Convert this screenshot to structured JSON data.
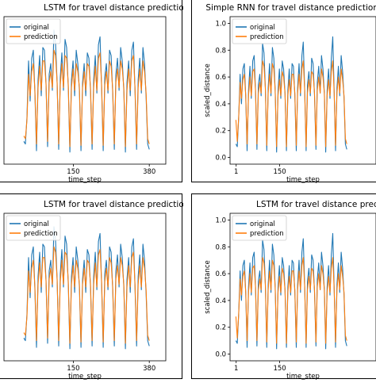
{
  "colors": {
    "original": "#1f77b4",
    "prediction": "#ff7f0e",
    "axis": "#000000",
    "background": "#ffffff"
  },
  "chart_data": [
    {
      "type": "line",
      "title": "LSTM for travel distance prediction",
      "xlabel": "time_step",
      "ylabel": "",
      "xticks": [
        "150",
        "380"
      ],
      "yticks": [],
      "legend": [
        "original",
        "prediction"
      ],
      "legend_position": "upper-left",
      "xlim": [
        -60,
        430
      ],
      "ylim": [
        -0.05,
        1.05
      ],
      "series": [
        {
          "name": "original",
          "values": [
            0.12,
            0.1,
            0.3,
            0.72,
            0.42,
            0.74,
            0.8,
            0.48,
            0.05,
            0.58,
            0.76,
            0.46,
            0.82,
            0.8,
            0.55,
            0.08,
            0.62,
            0.7,
            0.5,
            0.95,
            0.85,
            0.56,
            0.06,
            0.6,
            0.78,
            0.5,
            0.88,
            0.82,
            0.52,
            0.04,
            0.58,
            0.72,
            0.46,
            0.8,
            0.7,
            0.5,
            0.05,
            0.56,
            0.7,
            0.46,
            0.78,
            0.74,
            0.5,
            0.06,
            0.58,
            0.76,
            0.48,
            0.84,
            0.9,
            0.52,
            0.05,
            0.6,
            0.7,
            0.48,
            0.8,
            0.76,
            0.48,
            0.06,
            0.62,
            0.74,
            0.5,
            0.82,
            0.72,
            0.5,
            0.04,
            0.56,
            0.72,
            0.46,
            0.8,
            0.86,
            0.5,
            0.06,
            0.58,
            0.74,
            0.48,
            0.82,
            0.7,
            0.45,
            0.1,
            0.06
          ]
        },
        {
          "name": "prediction",
          "values": [
            0.16,
            0.14,
            0.28,
            0.62,
            0.46,
            0.64,
            0.7,
            0.5,
            0.1,
            0.52,
            0.68,
            0.5,
            0.72,
            0.72,
            0.55,
            0.12,
            0.56,
            0.64,
            0.52,
            0.8,
            0.76,
            0.56,
            0.1,
            0.54,
            0.7,
            0.52,
            0.76,
            0.74,
            0.54,
            0.08,
            0.52,
            0.66,
            0.5,
            0.7,
            0.64,
            0.52,
            0.09,
            0.52,
            0.64,
            0.5,
            0.7,
            0.68,
            0.52,
            0.1,
            0.52,
            0.68,
            0.5,
            0.74,
            0.78,
            0.54,
            0.09,
            0.54,
            0.64,
            0.5,
            0.72,
            0.68,
            0.5,
            0.1,
            0.56,
            0.66,
            0.52,
            0.72,
            0.66,
            0.52,
            0.08,
            0.5,
            0.66,
            0.5,
            0.72,
            0.76,
            0.52,
            0.1,
            0.52,
            0.66,
            0.5,
            0.72,
            0.64,
            0.48,
            0.14,
            0.1
          ]
        }
      ]
    },
    {
      "type": "line",
      "title": "Simple RNN for travel distance prediction",
      "xlabel": "time_step",
      "ylabel": "scaled_distance",
      "xticks": [
        "1",
        "150"
      ],
      "yticks": [
        "0.0",
        "0.2",
        "0.4",
        "0.6",
        "0.8",
        "1.0"
      ],
      "legend": [
        "original",
        "prediction"
      ],
      "legend_position": "upper-left",
      "xlim": [
        -20,
        480
      ],
      "ylim": [
        -0.05,
        1.05
      ],
      "series": [
        {
          "name": "original",
          "values": [
            0.1,
            0.08,
            0.3,
            0.62,
            0.4,
            0.66,
            0.7,
            0.45,
            0.05,
            0.5,
            0.68,
            0.44,
            0.72,
            0.76,
            0.5,
            0.06,
            0.54,
            0.62,
            0.46,
            0.85,
            0.78,
            0.52,
            0.05,
            0.52,
            0.7,
            0.46,
            0.82,
            0.74,
            0.5,
            0.04,
            0.5,
            0.66,
            0.44,
            0.72,
            0.66,
            0.48,
            0.05,
            0.5,
            0.66,
            0.44,
            0.7,
            0.68,
            0.46,
            0.05,
            0.52,
            0.7,
            0.46,
            0.76,
            0.86,
            0.5,
            0.05,
            0.54,
            0.64,
            0.46,
            0.74,
            0.7,
            0.46,
            0.06,
            0.56,
            0.68,
            0.48,
            0.76,
            0.66,
            0.48,
            0.04,
            0.5,
            0.66,
            0.44,
            0.74,
            0.9,
            0.48,
            0.05,
            0.52,
            0.68,
            0.46,
            0.76,
            0.64,
            0.44,
            0.1,
            0.06
          ]
        },
        {
          "name": "prediction",
          "values": [
            0.28,
            0.12,
            0.3,
            0.56,
            0.44,
            0.58,
            0.62,
            0.46,
            0.1,
            0.46,
            0.6,
            0.46,
            0.64,
            0.66,
            0.5,
            0.1,
            0.48,
            0.56,
            0.48,
            0.72,
            0.68,
            0.52,
            0.09,
            0.48,
            0.62,
            0.48,
            0.7,
            0.66,
            0.5,
            0.08,
            0.46,
            0.58,
            0.46,
            0.64,
            0.6,
            0.48,
            0.08,
            0.46,
            0.58,
            0.46,
            0.62,
            0.62,
            0.48,
            0.09,
            0.48,
            0.62,
            0.48,
            0.66,
            0.72,
            0.5,
            0.08,
            0.48,
            0.58,
            0.48,
            0.64,
            0.62,
            0.48,
            0.09,
            0.5,
            0.6,
            0.48,
            0.66,
            0.6,
            0.48,
            0.08,
            0.46,
            0.58,
            0.46,
            0.64,
            0.72,
            0.48,
            0.09,
            0.48,
            0.6,
            0.48,
            0.66,
            0.58,
            0.46,
            0.14,
            0.1
          ]
        }
      ]
    },
    {
      "type": "line",
      "title": "LSTM for travel distance prediction",
      "xlabel": "time_step",
      "ylabel": "",
      "xticks": [
        "150",
        "380"
      ],
      "yticks": [],
      "legend": [
        "original",
        "prediction"
      ],
      "legend_position": "upper-left",
      "xlim": [
        -60,
        430
      ],
      "ylim": [
        -0.05,
        1.05
      ],
      "series": [
        {
          "name": "original",
          "values": [
            0.12,
            0.1,
            0.3,
            0.72,
            0.42,
            0.74,
            0.8,
            0.48,
            0.05,
            0.58,
            0.76,
            0.46,
            0.82,
            0.8,
            0.55,
            0.08,
            0.62,
            0.7,
            0.5,
            0.95,
            0.85,
            0.56,
            0.06,
            0.6,
            0.78,
            0.5,
            0.88,
            0.82,
            0.52,
            0.04,
            0.58,
            0.72,
            0.46,
            0.8,
            0.7,
            0.5,
            0.05,
            0.56,
            0.7,
            0.46,
            0.78,
            0.74,
            0.5,
            0.06,
            0.58,
            0.76,
            0.48,
            0.84,
            0.9,
            0.52,
            0.05,
            0.6,
            0.7,
            0.48,
            0.8,
            0.76,
            0.48,
            0.06,
            0.62,
            0.74,
            0.5,
            0.82,
            0.72,
            0.5,
            0.04,
            0.56,
            0.72,
            0.46,
            0.8,
            0.86,
            0.5,
            0.06,
            0.58,
            0.74,
            0.48,
            0.82,
            0.7,
            0.45,
            0.1,
            0.06
          ]
        },
        {
          "name": "prediction",
          "values": [
            0.16,
            0.14,
            0.28,
            0.62,
            0.46,
            0.64,
            0.7,
            0.5,
            0.1,
            0.52,
            0.68,
            0.5,
            0.72,
            0.72,
            0.55,
            0.12,
            0.56,
            0.64,
            0.52,
            0.8,
            0.76,
            0.56,
            0.1,
            0.54,
            0.7,
            0.52,
            0.76,
            0.74,
            0.54,
            0.08,
            0.52,
            0.66,
            0.5,
            0.7,
            0.64,
            0.52,
            0.09,
            0.52,
            0.64,
            0.5,
            0.7,
            0.68,
            0.52,
            0.1,
            0.52,
            0.68,
            0.5,
            0.74,
            0.78,
            0.54,
            0.09,
            0.54,
            0.64,
            0.5,
            0.72,
            0.68,
            0.5,
            0.1,
            0.56,
            0.66,
            0.52,
            0.72,
            0.66,
            0.52,
            0.08,
            0.5,
            0.66,
            0.5,
            0.72,
            0.76,
            0.52,
            0.1,
            0.52,
            0.66,
            0.5,
            0.72,
            0.64,
            0.48,
            0.14,
            0.1
          ]
        }
      ]
    },
    {
      "type": "line",
      "title": "LSTM for travel distance prediction",
      "xlabel": "time_step",
      "ylabel": "scaled_distance",
      "xticks": [
        "1",
        "150"
      ],
      "yticks": [
        "0.0",
        "0.2",
        "0.4",
        "0.6",
        "0.8",
        "1.0"
      ],
      "legend": [
        "original",
        "prediction"
      ],
      "legend_position": "upper-left",
      "xlim": [
        -20,
        480
      ],
      "ylim": [
        -0.05,
        1.05
      ],
      "series": [
        {
          "name": "original",
          "values": [
            0.1,
            0.08,
            0.3,
            0.62,
            0.4,
            0.66,
            0.7,
            0.45,
            0.05,
            0.5,
            0.68,
            0.44,
            0.72,
            0.76,
            0.5,
            0.06,
            0.54,
            0.62,
            0.46,
            0.85,
            0.78,
            0.52,
            0.05,
            0.52,
            0.7,
            0.46,
            0.82,
            0.74,
            0.5,
            0.04,
            0.5,
            0.66,
            0.44,
            0.72,
            0.66,
            0.48,
            0.05,
            0.5,
            0.66,
            0.44,
            0.7,
            0.68,
            0.46,
            0.05,
            0.52,
            0.7,
            0.46,
            0.76,
            0.86,
            0.5,
            0.05,
            0.54,
            0.64,
            0.46,
            0.74,
            0.7,
            0.46,
            0.06,
            0.56,
            0.68,
            0.48,
            0.76,
            0.66,
            0.48,
            0.04,
            0.5,
            0.66,
            0.44,
            0.74,
            0.9,
            0.48,
            0.05,
            0.52,
            0.68,
            0.46,
            0.76,
            0.64,
            0.44,
            0.1,
            0.06
          ]
        },
        {
          "name": "prediction",
          "values": [
            0.28,
            0.12,
            0.3,
            0.56,
            0.44,
            0.58,
            0.62,
            0.46,
            0.1,
            0.46,
            0.6,
            0.46,
            0.64,
            0.66,
            0.5,
            0.1,
            0.48,
            0.56,
            0.48,
            0.72,
            0.68,
            0.52,
            0.09,
            0.48,
            0.62,
            0.48,
            0.7,
            0.66,
            0.5,
            0.08,
            0.46,
            0.58,
            0.46,
            0.64,
            0.6,
            0.48,
            0.08,
            0.46,
            0.58,
            0.46,
            0.62,
            0.62,
            0.48,
            0.09,
            0.48,
            0.62,
            0.48,
            0.66,
            0.72,
            0.5,
            0.08,
            0.48,
            0.58,
            0.48,
            0.64,
            0.62,
            0.48,
            0.09,
            0.5,
            0.6,
            0.48,
            0.66,
            0.6,
            0.48,
            0.08,
            0.46,
            0.58,
            0.46,
            0.64,
            0.72,
            0.48,
            0.09,
            0.48,
            0.6,
            0.48,
            0.66,
            0.58,
            0.46,
            0.14,
            0.1
          ]
        }
      ]
    }
  ]
}
